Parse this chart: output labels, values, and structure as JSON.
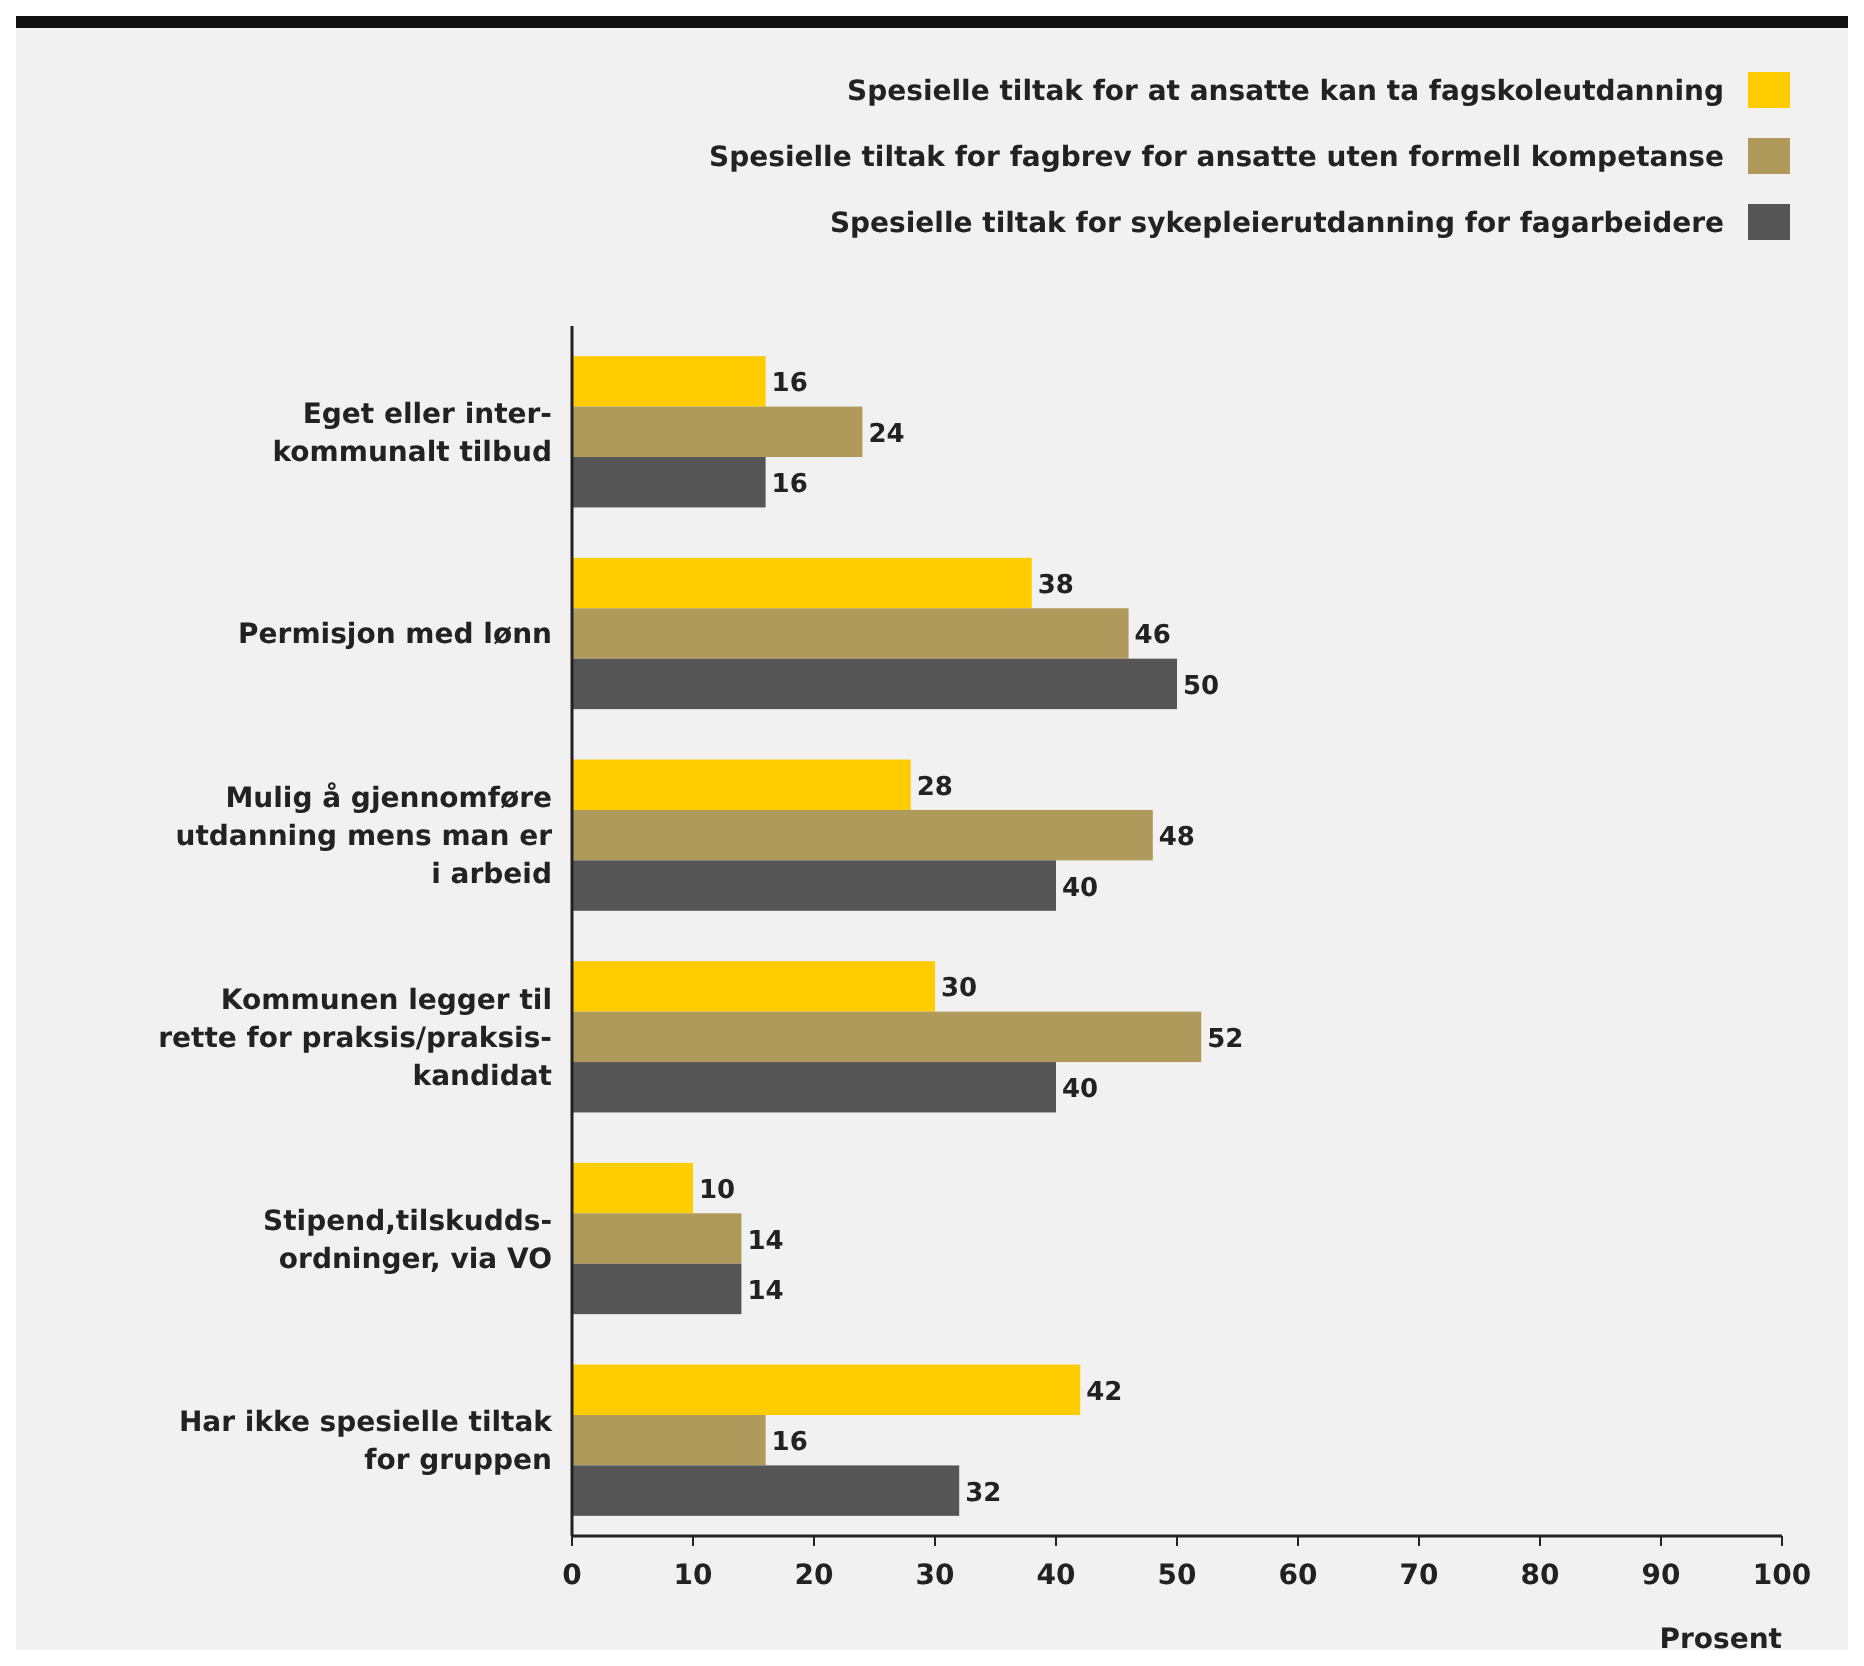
{
  "chart_data": {
    "type": "bar",
    "orientation": "horizontal",
    "xlabel": "Prosent",
    "categories": [
      "Eget eller inter-\nkommunalt tilbud",
      "Permisjon med lønn",
      "Mulig å gjennomføre\nutdanning mens man er\ni arbeid",
      "Kommunen legger til\nrette for praksis/praksis-\nkandidat",
      "Stipend,tilskudds-\nordninger, via VO",
      "Har ikke spesielle tiltak\nfor gruppen"
    ],
    "series": [
      {
        "name": "Spesielle tiltak for at ansatte kan ta fagskoleutdanning",
        "color": "#ffcc00",
        "values": [
          16,
          38,
          28,
          30,
          10,
          42
        ]
      },
      {
        "name": "Spesielle tiltak for fagbrev for ansatte uten formell kompetanse",
        "color": "#b09a5b",
        "values": [
          24,
          46,
          48,
          52,
          14,
          16
        ]
      },
      {
        "name": "Spesielle tiltak for sykepleierutdanning for fagarbeidere",
        "color": "#555555",
        "values": [
          16,
          50,
          40,
          40,
          14,
          32
        ]
      }
    ],
    "xlim": [
      0,
      100
    ],
    "xticks": [
      0,
      10,
      20,
      30,
      40,
      50,
      60,
      70,
      80,
      90,
      100
    ],
    "data_labels": true,
    "legend": "top right",
    "grid": false
  }
}
